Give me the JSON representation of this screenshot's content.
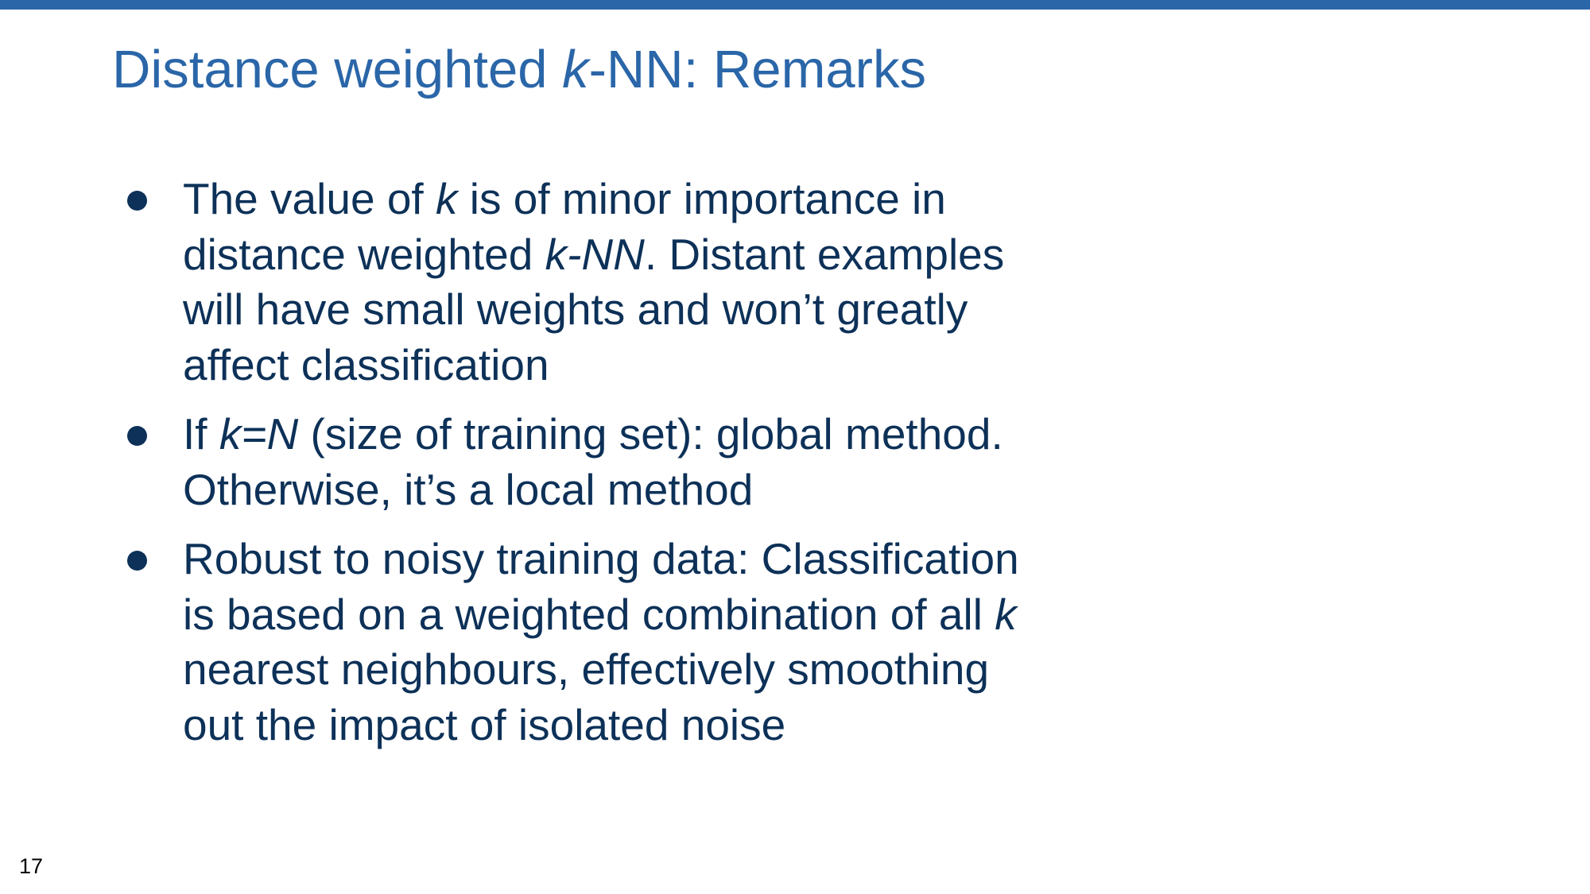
{
  "slide": {
    "title": {
      "before": "Distance weighted ",
      "k": "k",
      "after": "-NN: Remarks"
    },
    "page_number": "17",
    "bullets": [
      {
        "line1_a": "The value of ",
        "line1_k": "k",
        "line1_b": " is of minor importance in",
        "line2_a": "distance weighted ",
        "line2_knn": "k-NN",
        "line2_b": ". Distant examples",
        "line3": "will have small weights and won’t greatly",
        "line4": "affect classification"
      },
      {
        "line1_a": "If ",
        "line1_kn": "k=N",
        "line1_b": " (size of training set): global method.",
        "line2": "Otherwise, it’s a local method"
      },
      {
        "line1": "Robust to noisy training data: Classification",
        "line2_a": "is based on a weighted combination of all ",
        "line2_k": "k",
        "line3": "nearest neighbours, effectively smoothing",
        "line4": "out the impact of isolated noise"
      }
    ]
  },
  "colors": {
    "accent": "#2a66a8",
    "body_text": "#0d3158",
    "background": "#ffffff"
  }
}
